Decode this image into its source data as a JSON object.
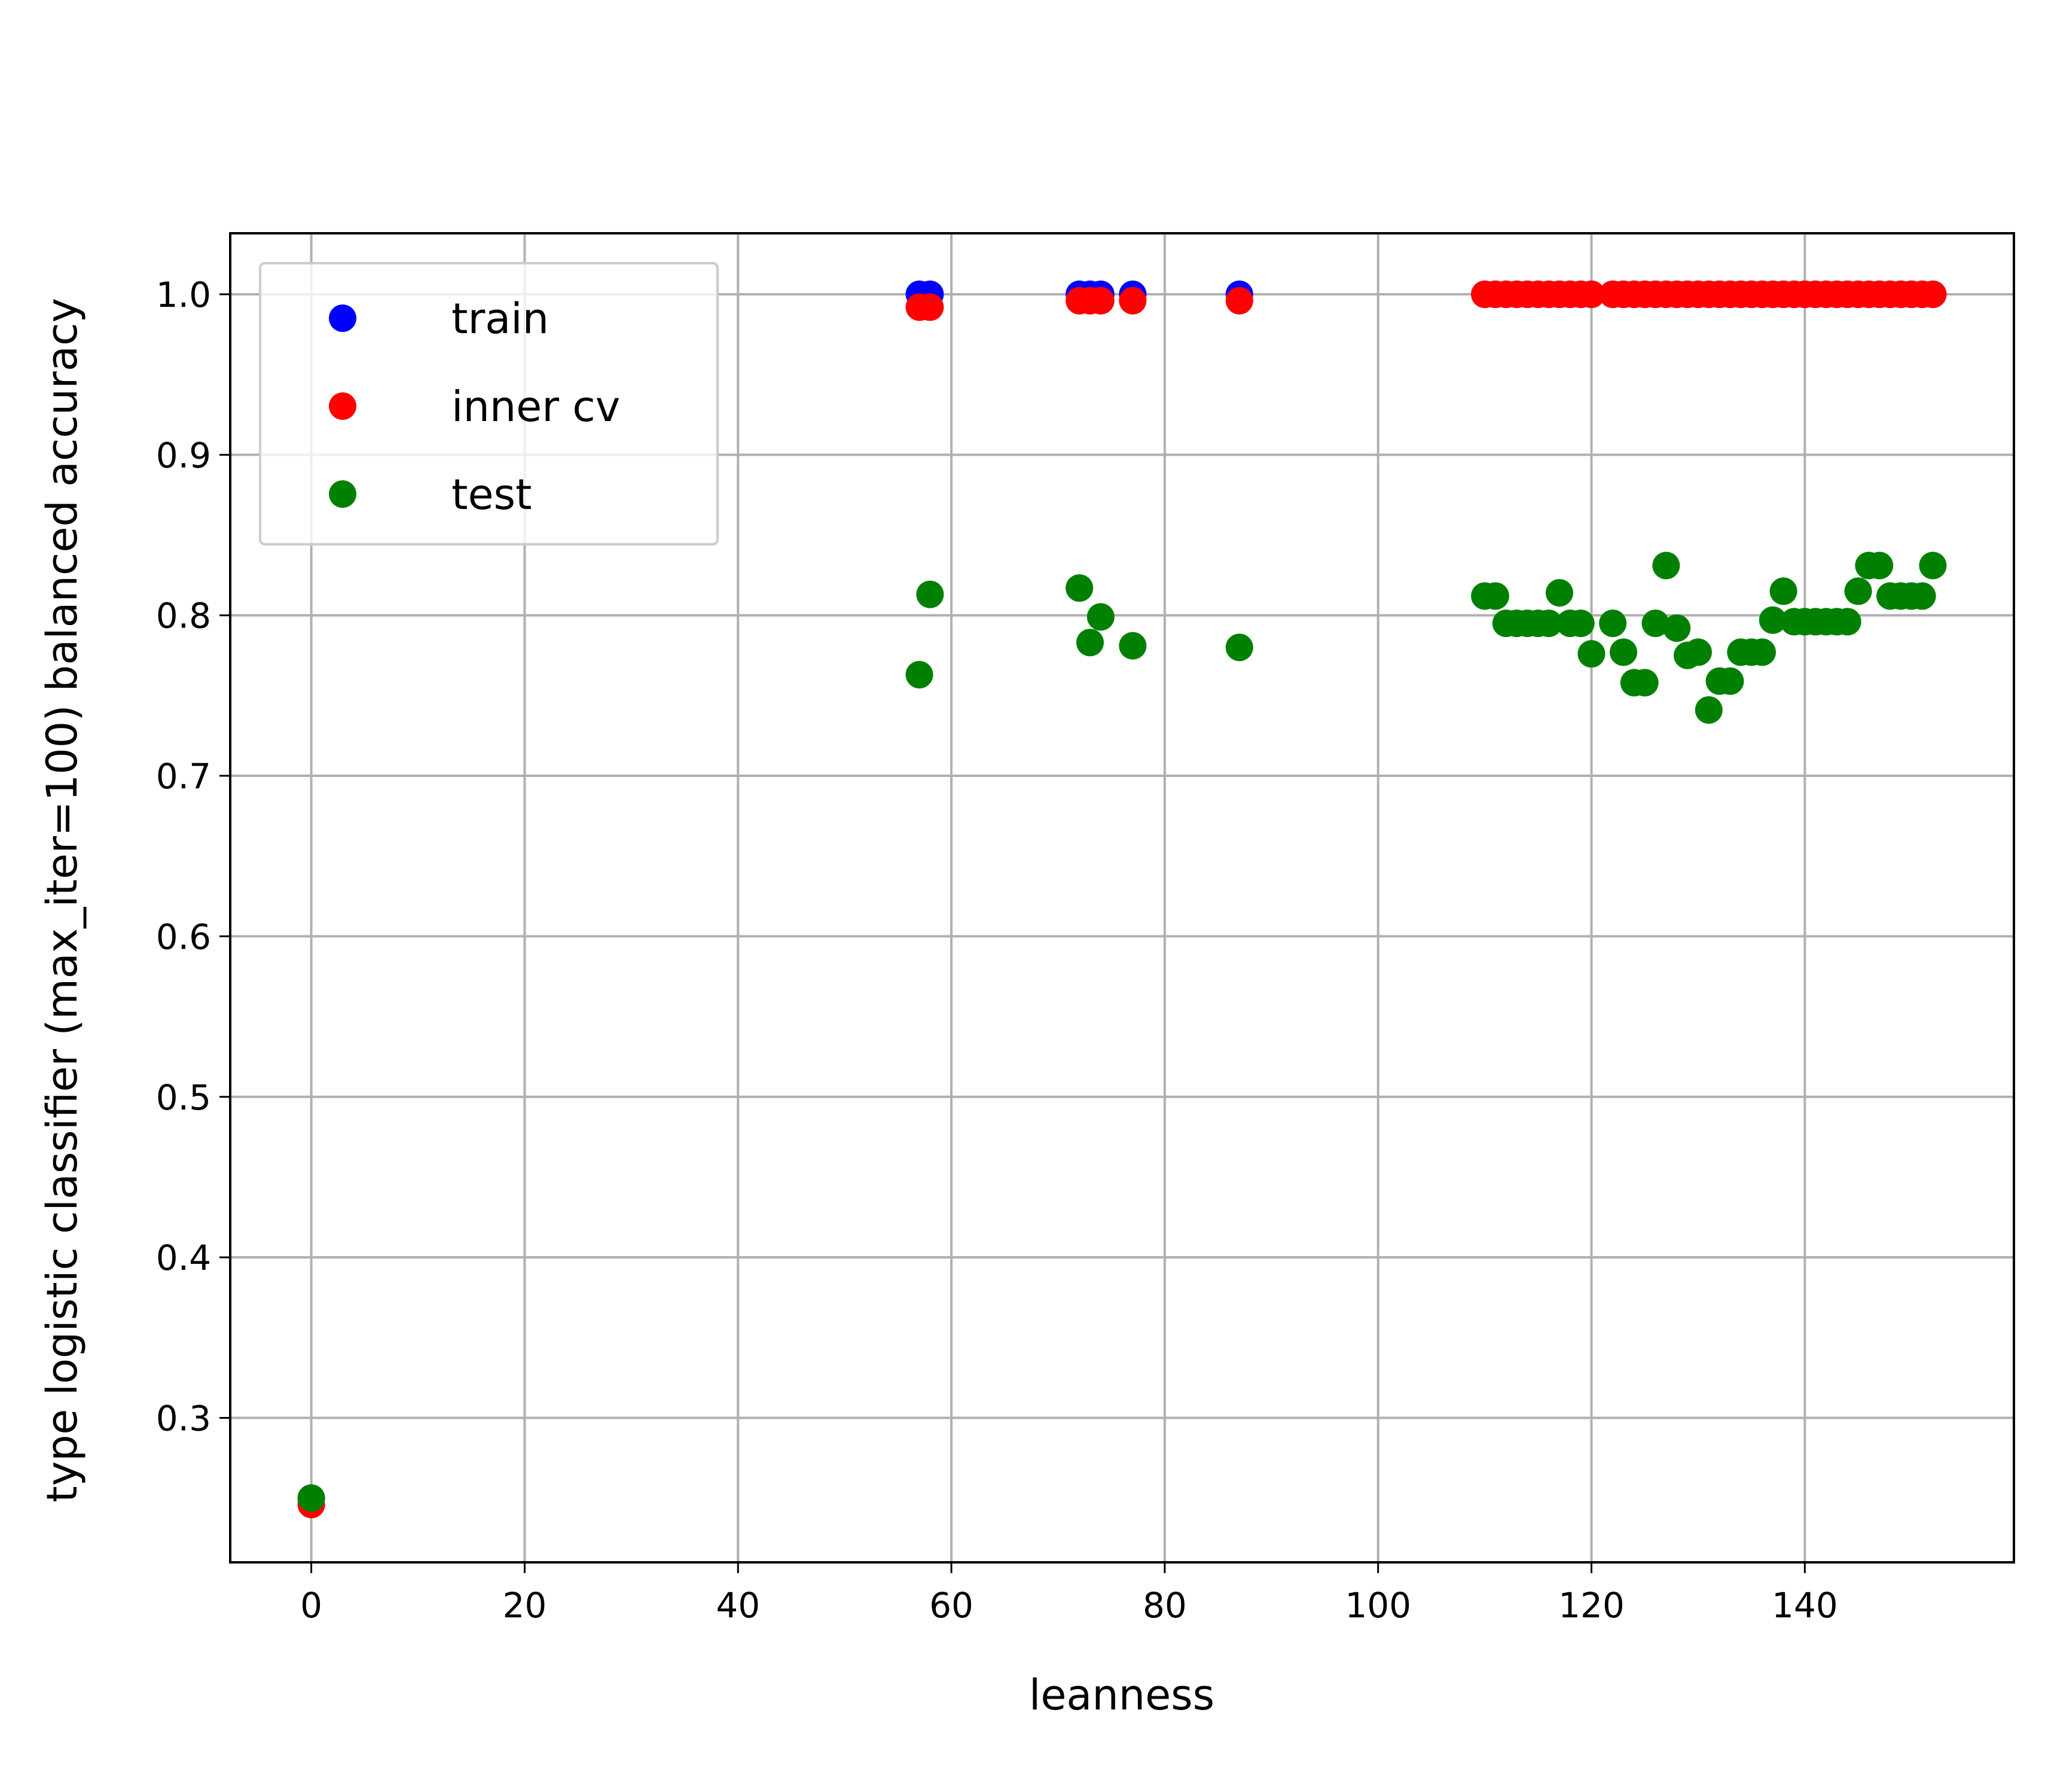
{
  "chart_data": {
    "type": "scatter",
    "title": "",
    "xlabel": "leanness",
    "ylabel": "type logistic classifier (max_iter=100) balanced accuracy",
    "xlim": [
      -7.6,
      159.6
    ],
    "ylim": [
      0.21,
      1.038
    ],
    "xticks": [
      0,
      20,
      40,
      60,
      80,
      100,
      120,
      140
    ],
    "yticks": [
      0.3,
      0.4,
      0.5,
      0.6,
      0.7,
      0.8,
      0.9,
      1.0
    ],
    "ytick_labels": [
      "0.3",
      "0.4",
      "0.5",
      "0.6",
      "0.7",
      "0.8",
      "0.9",
      "1.0"
    ],
    "grid": true,
    "legend_position": "top-left",
    "series": [
      {
        "name": "train",
        "color": "#0000ff",
        "points": [
          [
            0,
            0.25
          ],
          [
            57,
            1.0
          ],
          [
            58,
            1.0
          ],
          [
            72,
            1.0
          ],
          [
            73,
            1.0
          ],
          [
            74,
            1.0
          ],
          [
            77,
            1.0
          ],
          [
            87,
            1.0
          ],
          [
            110,
            1.0
          ],
          [
            111,
            1.0
          ],
          [
            112,
            1.0
          ],
          [
            113,
            1.0
          ],
          [
            114,
            1.0
          ],
          [
            115,
            1.0
          ],
          [
            116,
            1.0
          ],
          [
            117,
            1.0
          ],
          [
            118,
            1.0
          ],
          [
            119,
            1.0
          ],
          [
            120,
            1.0
          ],
          [
            122,
            1.0
          ],
          [
            123,
            1.0
          ],
          [
            124,
            1.0
          ],
          [
            125,
            1.0
          ],
          [
            126,
            1.0
          ],
          [
            127,
            1.0
          ],
          [
            128,
            1.0
          ],
          [
            129,
            1.0
          ],
          [
            130,
            1.0
          ],
          [
            131,
            1.0
          ],
          [
            132,
            1.0
          ],
          [
            133,
            1.0
          ],
          [
            134,
            1.0
          ],
          [
            135,
            1.0
          ],
          [
            136,
            1.0
          ],
          [
            137,
            1.0
          ],
          [
            138,
            1.0
          ],
          [
            139,
            1.0
          ],
          [
            140,
            1.0
          ],
          [
            141,
            1.0
          ],
          [
            142,
            1.0
          ],
          [
            143,
            1.0
          ],
          [
            144,
            1.0
          ],
          [
            145,
            1.0
          ],
          [
            146,
            1.0
          ],
          [
            147,
            1.0
          ],
          [
            148,
            1.0
          ],
          [
            149,
            1.0
          ],
          [
            150,
            1.0
          ],
          [
            151,
            1.0
          ],
          [
            152,
            1.0
          ]
        ]
      },
      {
        "name": "inner cv",
        "color": "#ff0000",
        "points": [
          [
            0,
            0.246
          ],
          [
            57,
            0.992
          ],
          [
            58,
            0.992
          ],
          [
            72,
            0.996
          ],
          [
            73,
            0.996
          ],
          [
            74,
            0.996
          ],
          [
            77,
            0.996
          ],
          [
            87,
            0.996
          ],
          [
            110,
            1.0
          ],
          [
            111,
            1.0
          ],
          [
            112,
            1.0
          ],
          [
            113,
            1.0
          ],
          [
            114,
            1.0
          ],
          [
            115,
            1.0
          ],
          [
            116,
            1.0
          ],
          [
            117,
            1.0
          ],
          [
            118,
            1.0
          ],
          [
            119,
            1.0
          ],
          [
            120,
            1.0
          ],
          [
            122,
            1.0
          ],
          [
            123,
            1.0
          ],
          [
            124,
            1.0
          ],
          [
            125,
            1.0
          ],
          [
            126,
            1.0
          ],
          [
            127,
            1.0
          ],
          [
            128,
            1.0
          ],
          [
            129,
            1.0
          ],
          [
            130,
            1.0
          ],
          [
            131,
            1.0
          ],
          [
            132,
            1.0
          ],
          [
            133,
            1.0
          ],
          [
            134,
            1.0
          ],
          [
            135,
            1.0
          ],
          [
            136,
            1.0
          ],
          [
            137,
            1.0
          ],
          [
            138,
            1.0
          ],
          [
            139,
            1.0
          ],
          [
            140,
            1.0
          ],
          [
            141,
            1.0
          ],
          [
            142,
            1.0
          ],
          [
            143,
            1.0
          ],
          [
            144,
            1.0
          ],
          [
            145,
            1.0
          ],
          [
            146,
            1.0
          ],
          [
            147,
            1.0
          ],
          [
            148,
            1.0
          ],
          [
            149,
            1.0
          ],
          [
            150,
            1.0
          ],
          [
            151,
            1.0
          ],
          [
            152,
            1.0
          ]
        ]
      },
      {
        "name": "test",
        "color": "#008000",
        "points": [
          [
            0,
            0.25
          ],
          [
            57,
            0.763
          ],
          [
            58,
            0.813
          ],
          [
            72,
            0.817
          ],
          [
            73,
            0.783
          ],
          [
            74,
            0.799
          ],
          [
            77,
            0.781
          ],
          [
            87,
            0.78
          ],
          [
            110,
            0.812
          ],
          [
            111,
            0.812
          ],
          [
            112,
            0.795
          ],
          [
            113,
            0.795
          ],
          [
            114,
            0.795
          ],
          [
            115,
            0.795
          ],
          [
            116,
            0.795
          ],
          [
            117,
            0.814
          ],
          [
            118,
            0.795
          ],
          [
            119,
            0.795
          ],
          [
            120,
            0.776
          ],
          [
            122,
            0.795
          ],
          [
            123,
            0.777
          ],
          [
            124,
            0.758
          ],
          [
            125,
            0.758
          ],
          [
            126,
            0.795
          ],
          [
            127,
            0.831
          ],
          [
            128,
            0.792
          ],
          [
            129,
            0.775
          ],
          [
            130,
            0.777
          ],
          [
            131,
            0.741
          ],
          [
            132,
            0.759
          ],
          [
            133,
            0.759
          ],
          [
            134,
            0.777
          ],
          [
            135,
            0.777
          ],
          [
            136,
            0.777
          ],
          [
            137,
            0.797
          ],
          [
            138,
            0.815
          ],
          [
            139,
            0.796
          ],
          [
            140,
            0.796
          ],
          [
            141,
            0.796
          ],
          [
            142,
            0.796
          ],
          [
            143,
            0.796
          ],
          [
            144,
            0.796
          ],
          [
            145,
            0.815
          ],
          [
            146,
            0.831
          ],
          [
            147,
            0.831
          ],
          [
            148,
            0.812
          ],
          [
            149,
            0.812
          ],
          [
            150,
            0.812
          ],
          [
            151,
            0.812
          ],
          [
            152,
            0.831
          ]
        ]
      }
    ]
  }
}
